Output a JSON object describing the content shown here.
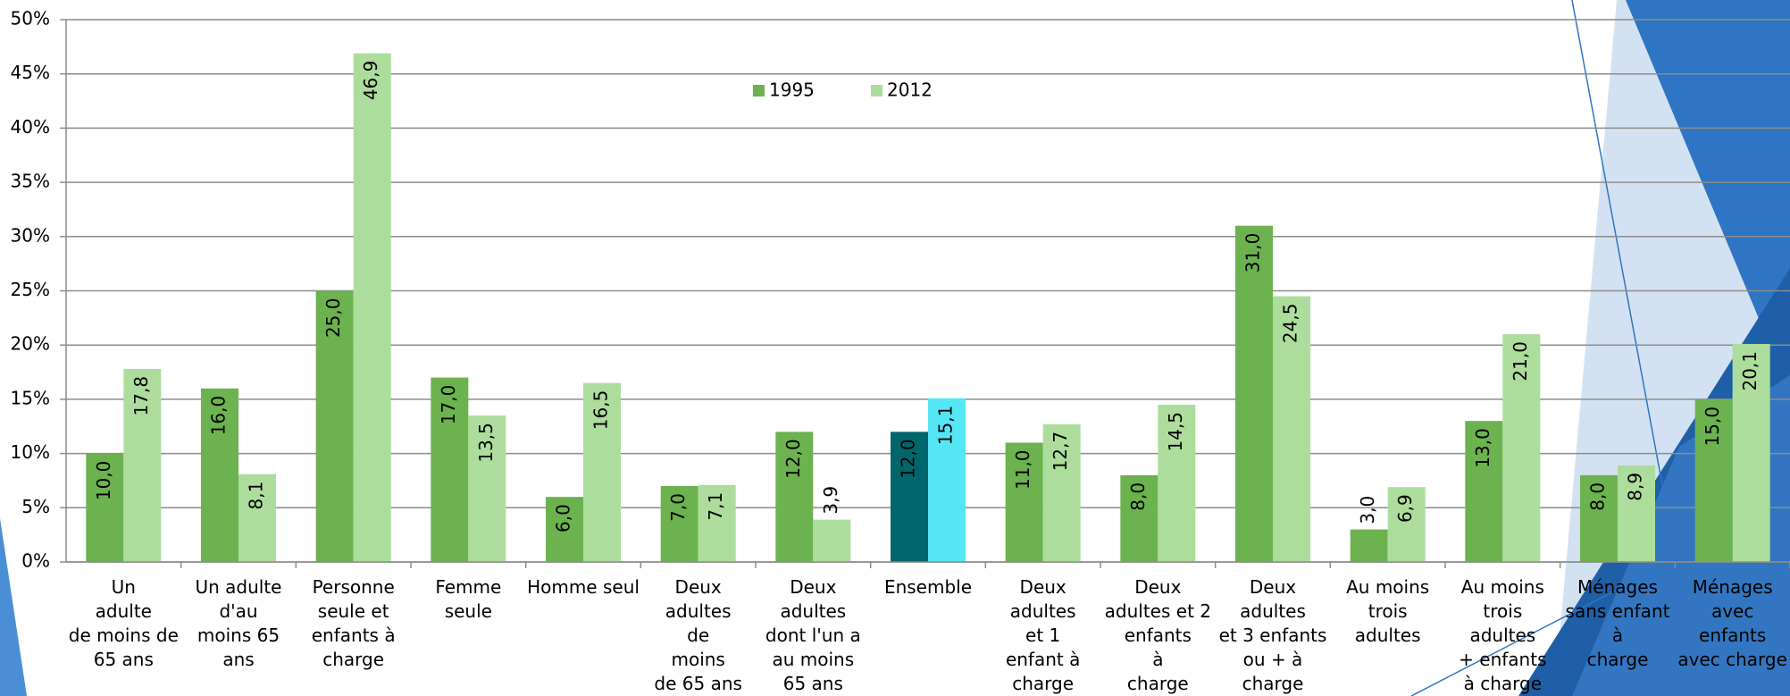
{
  "chart_data": {
    "type": "bar",
    "categories": [
      "Un\nadulte\nde moins de\n65 ans",
      "Un adulte\nd'au\nmoins 65\nans",
      "Personne\nseule et\nenfants à\ncharge",
      "Femme\nseule",
      "Homme seul",
      "Deux\nadultes\nde\nmoins\nde 65 ans",
      "Deux\nadultes\ndont l'un a\nau moins\n65 ans",
      "Ensemble",
      "Deux\nadultes\net 1\nenfant à\ncharge",
      "Deux\nadultes et 2\nenfants\nà\ncharge",
      "Deux\nadultes\net 3 enfants\nou + à\ncharge",
      "Au moins\ntrois\nadultes",
      "Au moins\ntrois\nadultes\n+ enfants\nà charge",
      "Ménages\nsans enfant\nà\ncharge",
      "Ménages\navec\nenfants\navec charge"
    ],
    "series": [
      {
        "name": "1995",
        "color": "#6cb24f",
        "colors": [
          "#6cb24f",
          "#6cb24f",
          "#6cb24f",
          "#6cb24f",
          "#6cb24f",
          "#6cb24f",
          "#6cb24f",
          "#00666b",
          "#6cb24f",
          "#6cb24f",
          "#6cb24f",
          "#6cb24f",
          "#6cb24f",
          "#6cb24f",
          "#6cb24f"
        ],
        "values": [
          10,
          16,
          25,
          17,
          6,
          7,
          12,
          12,
          11,
          8,
          31,
          3,
          13,
          8,
          15
        ],
        "value_labels": [
          "10,0",
          "16,0",
          "25,0",
          "17,0",
          "6,0",
          "7,0",
          "12,0",
          "12,0",
          "11,0",
          "8,0",
          "31,0",
          "3,0",
          "13,0",
          "8,0",
          "15,0"
        ]
      },
      {
        "name": "2012",
        "color": "#addd9c",
        "colors": [
          "#addd9c",
          "#addd9c",
          "#addd9c",
          "#addd9c",
          "#addd9c",
          "#addd9c",
          "#addd9c",
          "#55e6f4",
          "#addd9c",
          "#addd9c",
          "#addd9c",
          "#addd9c",
          "#addd9c",
          "#addd9c",
          "#addd9c"
        ],
        "values": [
          17.8,
          8.1,
          46.9,
          13.5,
          16.5,
          7.1,
          3.9,
          15.1,
          12.7,
          14.5,
          24.5,
          6.9,
          21.0,
          8.9,
          20.1
        ],
        "value_labels": [
          "17,8",
          "8,1",
          "46,9",
          "13,5",
          "16,5",
          "7,1",
          "3,9",
          "15,1",
          "12,7",
          "14,5",
          "24,5",
          "6,9",
          "21,0",
          "8,9",
          "20,1"
        ]
      }
    ],
    "ylim": [
      0,
      50
    ],
    "yticks": [
      {
        "value": 0,
        "label": "0%"
      },
      {
        "value": 5,
        "label": "5%"
      },
      {
        "value": 10,
        "label": "10%"
      },
      {
        "value": 15,
        "label": "15%"
      },
      {
        "value": 20,
        "label": "20%"
      },
      {
        "value": 25,
        "label": "25%"
      },
      {
        "value": 30,
        "label": "30%"
      },
      {
        "value": 35,
        "label": "35%"
      },
      {
        "value": 40,
        "label": "40%"
      },
      {
        "value": 45,
        "label": "45%"
      },
      {
        "value": 50,
        "label": "50%"
      }
    ],
    "grid": true,
    "legend": "top"
  }
}
